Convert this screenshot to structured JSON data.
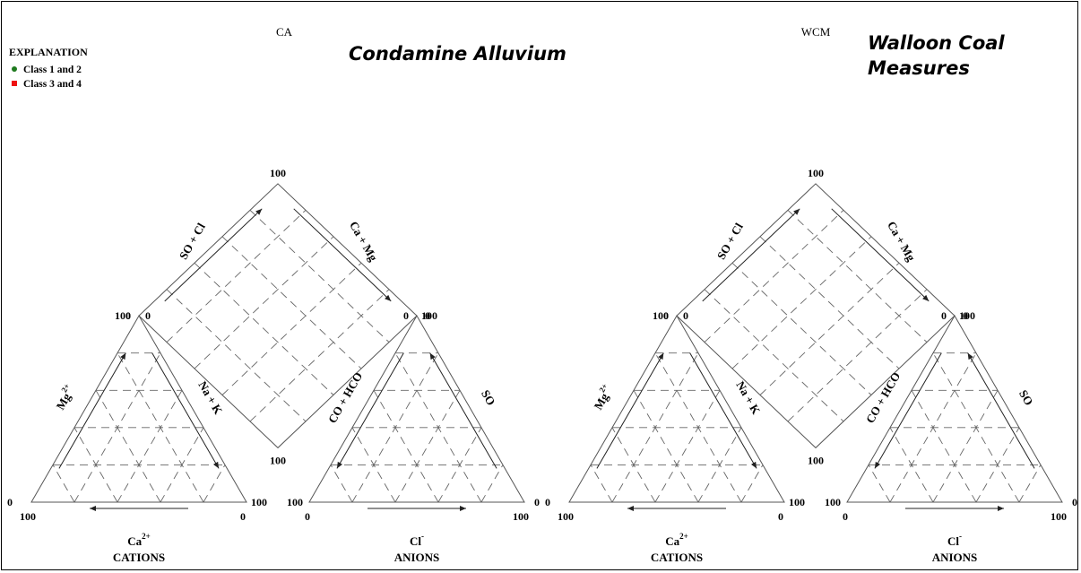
{
  "legend": {
    "title": "EXPLANATION",
    "items": [
      {
        "label": "Class 1 and 2",
        "color": "#1f7a1f",
        "shape": "circle"
      },
      {
        "label": "Class 3 and 4",
        "color": "#ee1111",
        "shape": "square"
      }
    ]
  },
  "panels": [
    {
      "code": "CA",
      "title": "Condamine Alluvium",
      "cation_label": "CATIONS",
      "cation_ion": "Ca",
      "cation_ion_charge": "2+",
      "anion_label": "ANIONS",
      "anion_ion": "Cl",
      "anion_ion_charge": "-",
      "mg_label": "Mg",
      "mg_charge": "2+",
      "nak_label": "Na  + K",
      "co3_label": "CO  + HCO",
      "so4_label": "SO",
      "diamond_left_label": "SO  + Cl",
      "diamond_right_label": "Ca  + Mg",
      "ticks": {
        "d_top": "100",
        "d_left": "0",
        "d_right": "0",
        "d_bottom": "100",
        "cat_top_l": "100",
        "cat_top_r": "0",
        "cat_bl": "0",
        "cat_br": "100",
        "cat_bl_b": "100",
        "cat_br_b": "0",
        "an_top_l": "0",
        "an_top_r": "100",
        "an_bl": "100",
        "an_br": "0",
        "an_bl_b": "0",
        "an_br_b": "100"
      }
    },
    {
      "code": "WCM",
      "title_line1": "Walloon Coal",
      "title_line2": "Measures",
      "cation_label": "CATIONS",
      "cation_ion": "Ca",
      "cation_ion_charge": "2+",
      "anion_label": "ANIONS",
      "anion_ion": "Cl",
      "anion_ion_charge": "-",
      "mg_label": "Mg",
      "mg_charge": "2+",
      "nak_label": "Na  + K",
      "co3_label": "CO  + HCO",
      "so4_label": "SO",
      "diamond_left_label": "SO  + Cl",
      "diamond_right_label": "Ca  + Mg",
      "ticks": {
        "d_top": "100",
        "d_left": "0",
        "d_right": "0",
        "d_bottom": "100",
        "cat_top_l": "100",
        "cat_top_r": "0",
        "cat_bl": "0",
        "cat_br": "100",
        "cat_bl_b": "100",
        "cat_br_b": "0",
        "an_top_l": "0",
        "an_top_r": "100",
        "an_bl": "100",
        "an_br": "0",
        "an_bl_b": "0",
        "an_br_b": "100"
      }
    }
  ]
}
